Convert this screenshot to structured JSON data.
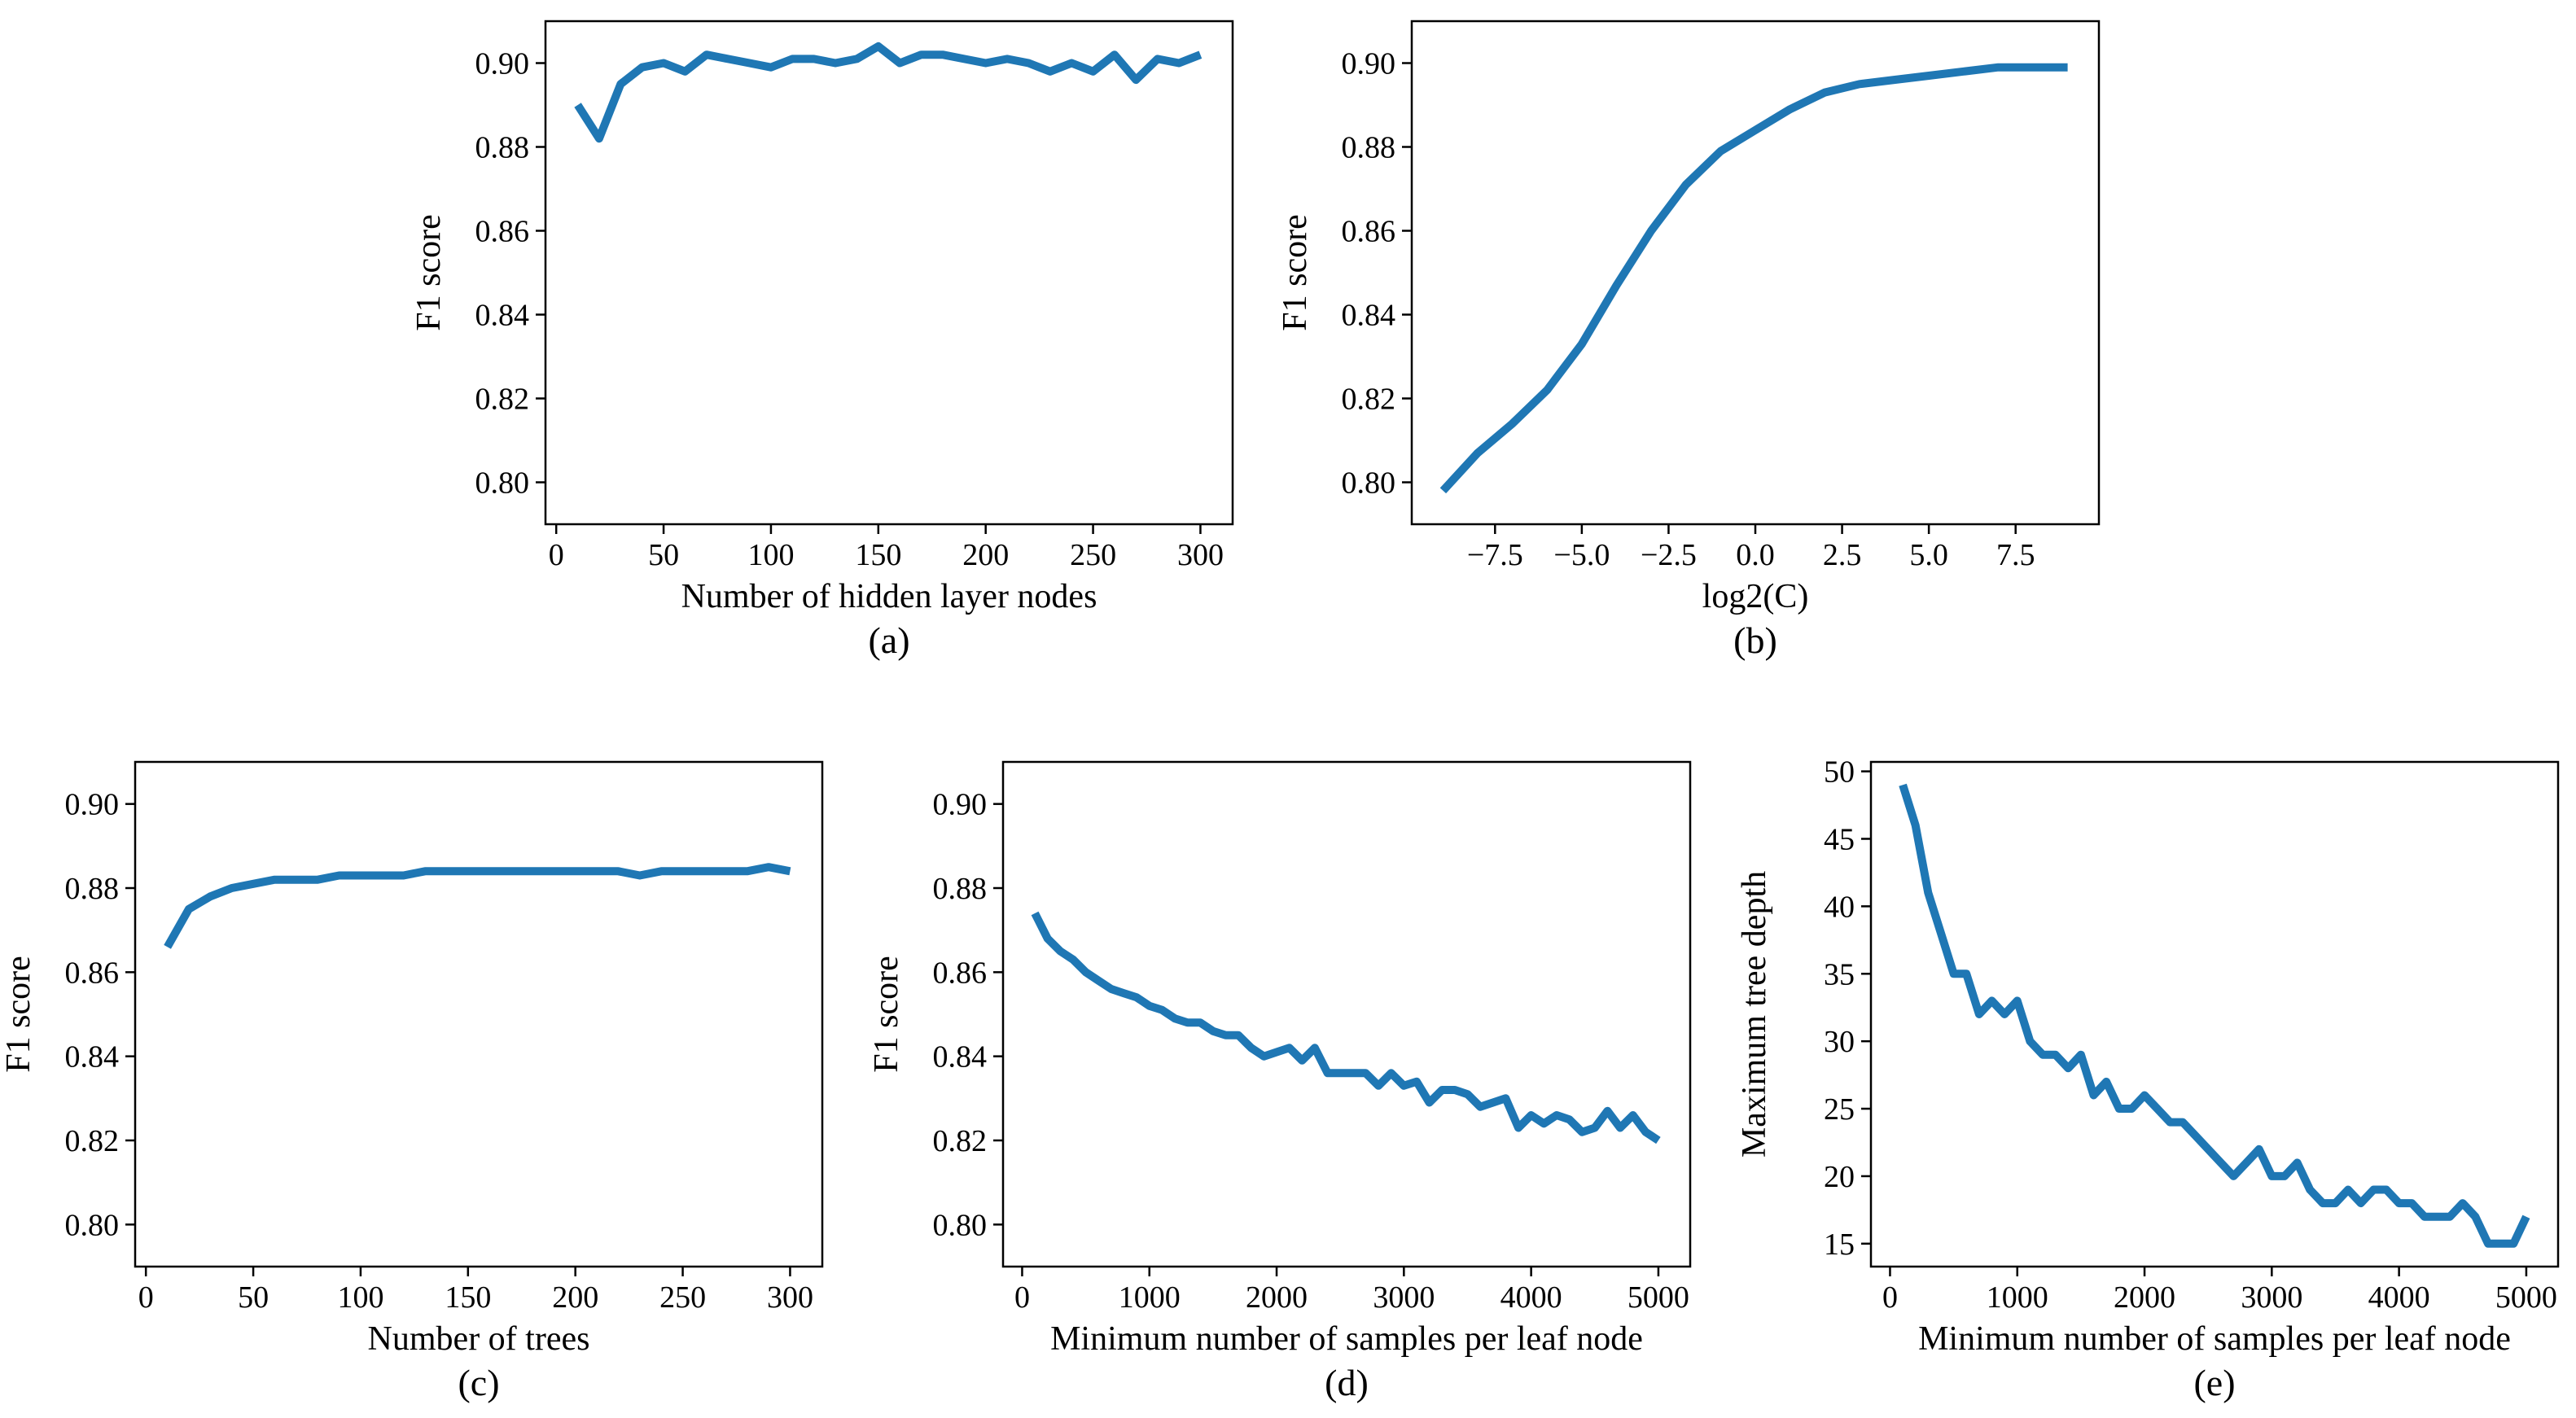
{
  "chart_data": [
    {
      "type": "line",
      "panel": "(a)",
      "xlabel": "Number of hidden layer nodes",
      "ylabel": "F1 score",
      "xlim": [
        -5,
        315
      ],
      "ylim": [
        0.79,
        0.91
      ],
      "xticks": [
        0,
        50,
        100,
        150,
        200,
        250,
        300
      ],
      "xtick_labels": [
        "0",
        "50",
        "100",
        "150",
        "200",
        "250",
        "300"
      ],
      "yticks": [
        0.8,
        0.82,
        0.84,
        0.86,
        0.88,
        0.9
      ],
      "ytick_labels": [
        "0.80",
        "0.82",
        "0.84",
        "0.86",
        "0.88",
        "0.90"
      ],
      "color": "#1f77b4",
      "x": [
        10,
        20,
        30,
        40,
        50,
        60,
        70,
        80,
        90,
        100,
        110,
        120,
        130,
        140,
        150,
        160,
        170,
        180,
        190,
        200,
        210,
        220,
        230,
        240,
        250,
        260,
        270,
        280,
        290,
        300
      ],
      "y": [
        0.89,
        0.882,
        0.895,
        0.899,
        0.9,
        0.898,
        0.902,
        0.901,
        0.9,
        0.899,
        0.901,
        0.901,
        0.9,
        0.901,
        0.904,
        0.9,
        0.902,
        0.902,
        0.901,
        0.9,
        0.901,
        0.9,
        0.898,
        0.9,
        0.898,
        0.902,
        0.896,
        0.901,
        0.9,
        0.902
      ]
    },
    {
      "type": "line",
      "panel": "(b)",
      "xlabel": "log2(C)",
      "ylabel": "F1 score",
      "xlim": [
        -9.9,
        9.9
      ],
      "ylim": [
        0.79,
        0.91
      ],
      "xticks": [
        -7.5,
        -5.0,
        -2.5,
        0.0,
        2.5,
        5.0,
        7.5
      ],
      "xtick_labels": [
        "−7.5",
        "−5.0",
        "−2.5",
        "0.0",
        "2.5",
        "5.0",
        "7.5"
      ],
      "yticks": [
        0.8,
        0.82,
        0.84,
        0.86,
        0.88,
        0.9
      ],
      "ytick_labels": [
        "0.80",
        "0.82",
        "0.84",
        "0.86",
        "0.88",
        "0.90"
      ],
      "color": "#1f77b4",
      "x": [
        -9,
        -8,
        -7,
        -6,
        -5,
        -4,
        -3,
        -2,
        -1,
        0,
        1,
        2,
        3,
        4,
        5,
        6,
        7,
        8,
        9
      ],
      "y": [
        0.798,
        0.807,
        0.814,
        0.822,
        0.833,
        0.847,
        0.86,
        0.871,
        0.879,
        0.884,
        0.889,
        0.893,
        0.895,
        0.896,
        0.897,
        0.898,
        0.899,
        0.899,
        0.899
      ]
    },
    {
      "type": "line",
      "panel": "(c)",
      "xlabel": "Number of trees",
      "ylabel": "F1 score",
      "xlim": [
        -5,
        315
      ],
      "ylim": [
        0.79,
        0.91
      ],
      "xticks": [
        0,
        50,
        100,
        150,
        200,
        250,
        300
      ],
      "xtick_labels": [
        "0",
        "50",
        "100",
        "150",
        "200",
        "250",
        "300"
      ],
      "yticks": [
        0.8,
        0.82,
        0.84,
        0.86,
        0.88,
        0.9
      ],
      "ytick_labels": [
        "0.80",
        "0.82",
        "0.84",
        "0.86",
        "0.88",
        "0.90"
      ],
      "color": "#1f77b4",
      "x": [
        10,
        20,
        30,
        40,
        50,
        60,
        70,
        80,
        90,
        100,
        110,
        120,
        130,
        140,
        150,
        160,
        170,
        180,
        190,
        200,
        210,
        220,
        230,
        240,
        250,
        260,
        270,
        280,
        290,
        300
      ],
      "y": [
        0.866,
        0.875,
        0.878,
        0.88,
        0.881,
        0.882,
        0.882,
        0.882,
        0.883,
        0.883,
        0.883,
        0.883,
        0.884,
        0.884,
        0.884,
        0.884,
        0.884,
        0.884,
        0.884,
        0.884,
        0.884,
        0.884,
        0.883,
        0.884,
        0.884,
        0.884,
        0.884,
        0.884,
        0.885,
        0.884
      ]
    },
    {
      "type": "line",
      "panel": "(d)",
      "xlabel": "Minimum number of samples per leaf node",
      "ylabel": "F1 score",
      "xlim": [
        -150,
        5250
      ],
      "ylim": [
        0.79,
        0.91
      ],
      "xticks": [
        0,
        1000,
        2000,
        3000,
        4000,
        5000
      ],
      "xtick_labels": [
        "0",
        "1000",
        "2000",
        "3000",
        "4000",
        "5000"
      ],
      "yticks": [
        0.8,
        0.82,
        0.84,
        0.86,
        0.88,
        0.9
      ],
      "ytick_labels": [
        "0.80",
        "0.82",
        "0.84",
        "0.86",
        "0.88",
        "0.90"
      ],
      "color": "#1f77b4",
      "x": [
        100,
        200,
        300,
        400,
        500,
        600,
        700,
        800,
        900,
        1000,
        1100,
        1200,
        1300,
        1400,
        1500,
        1600,
        1700,
        1800,
        1900,
        2000,
        2100,
        2200,
        2300,
        2400,
        2500,
        2600,
        2700,
        2800,
        2900,
        3000,
        3100,
        3200,
        3300,
        3400,
        3500,
        3600,
        3700,
        3800,
        3900,
        4000,
        4100,
        4200,
        4300,
        4400,
        4500,
        4600,
        4700,
        4800,
        4900,
        5000
      ],
      "y": [
        0.874,
        0.868,
        0.865,
        0.863,
        0.86,
        0.858,
        0.856,
        0.855,
        0.854,
        0.852,
        0.851,
        0.849,
        0.848,
        0.848,
        0.846,
        0.845,
        0.845,
        0.842,
        0.84,
        0.841,
        0.842,
        0.839,
        0.842,
        0.836,
        0.836,
        0.836,
        0.836,
        0.833,
        0.836,
        0.833,
        0.834,
        0.829,
        0.832,
        0.832,
        0.831,
        0.828,
        0.829,
        0.83,
        0.823,
        0.826,
        0.824,
        0.826,
        0.825,
        0.822,
        0.823,
        0.827,
        0.823,
        0.826,
        0.822,
        0.82
      ]
    },
    {
      "type": "line",
      "panel": "(e)",
      "xlabel": "Minimum number of samples per leaf node",
      "ylabel": "Maximum tree depth",
      "xlim": [
        -150,
        5250
      ],
      "ylim": [
        13.3,
        50.7
      ],
      "xticks": [
        0,
        1000,
        2000,
        3000,
        4000,
        5000
      ],
      "xtick_labels": [
        "0",
        "1000",
        "2000",
        "3000",
        "4000",
        "5000"
      ],
      "yticks": [
        15,
        20,
        25,
        30,
        35,
        40,
        45,
        50
      ],
      "ytick_labels": [
        "15",
        "20",
        "25",
        "30",
        "35",
        "40",
        "45",
        "50"
      ],
      "color": "#1f77b4",
      "x": [
        100,
        200,
        300,
        400,
        500,
        600,
        700,
        800,
        900,
        1000,
        1100,
        1200,
        1300,
        1400,
        1500,
        1600,
        1700,
        1800,
        1900,
        2000,
        2100,
        2200,
        2300,
        2400,
        2500,
        2600,
        2700,
        2800,
        2900,
        3000,
        3100,
        3200,
        3300,
        3400,
        3500,
        3600,
        3700,
        3800,
        3900,
        4000,
        4100,
        4200,
        4300,
        4400,
        4500,
        4600,
        4700,
        4800,
        4900,
        5000
      ],
      "y": [
        49,
        46,
        41,
        38,
        35,
        35,
        32,
        33,
        32,
        33,
        30,
        29,
        29,
        28,
        29,
        26,
        27,
        25,
        25,
        26,
        25,
        24,
        24,
        23,
        22,
        21,
        20,
        21,
        22,
        20,
        20,
        21,
        19,
        18,
        18,
        19,
        18,
        19,
        19,
        18,
        18,
        17,
        17,
        17,
        18,
        17,
        15,
        15,
        15,
        17
      ]
    }
  ]
}
